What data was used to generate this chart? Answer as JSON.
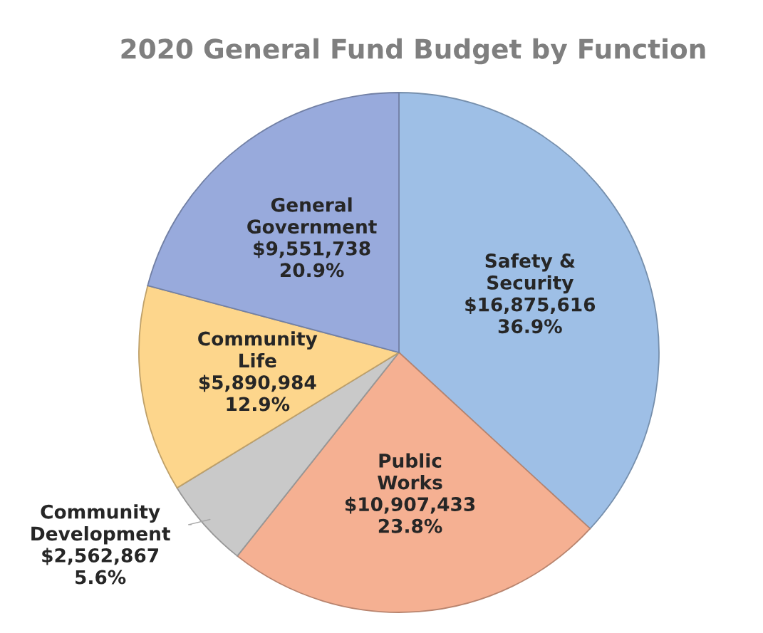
{
  "chart_data": {
    "type": "pie",
    "title": "2020 General Fund Budget by Function",
    "categories": [
      "Safety & Security",
      "Public Works",
      "Community Development",
      "Community Life",
      "General Government"
    ],
    "values": [
      16875616,
      10907433,
      2562867,
      5890984,
      9551738
    ],
    "colors": [
      "#9ebfe6",
      "#f5b092",
      "#c9c9c9",
      "#fdd68c",
      "#98aadc"
    ],
    "value_labels": [
      "$16,875,616\n36.9%",
      "$10,907,433\n23.8%",
      "$2,562,867\n5.6%",
      "$5,890,984\n12.9%",
      "$9,551,738\n20.9%"
    ]
  }
}
